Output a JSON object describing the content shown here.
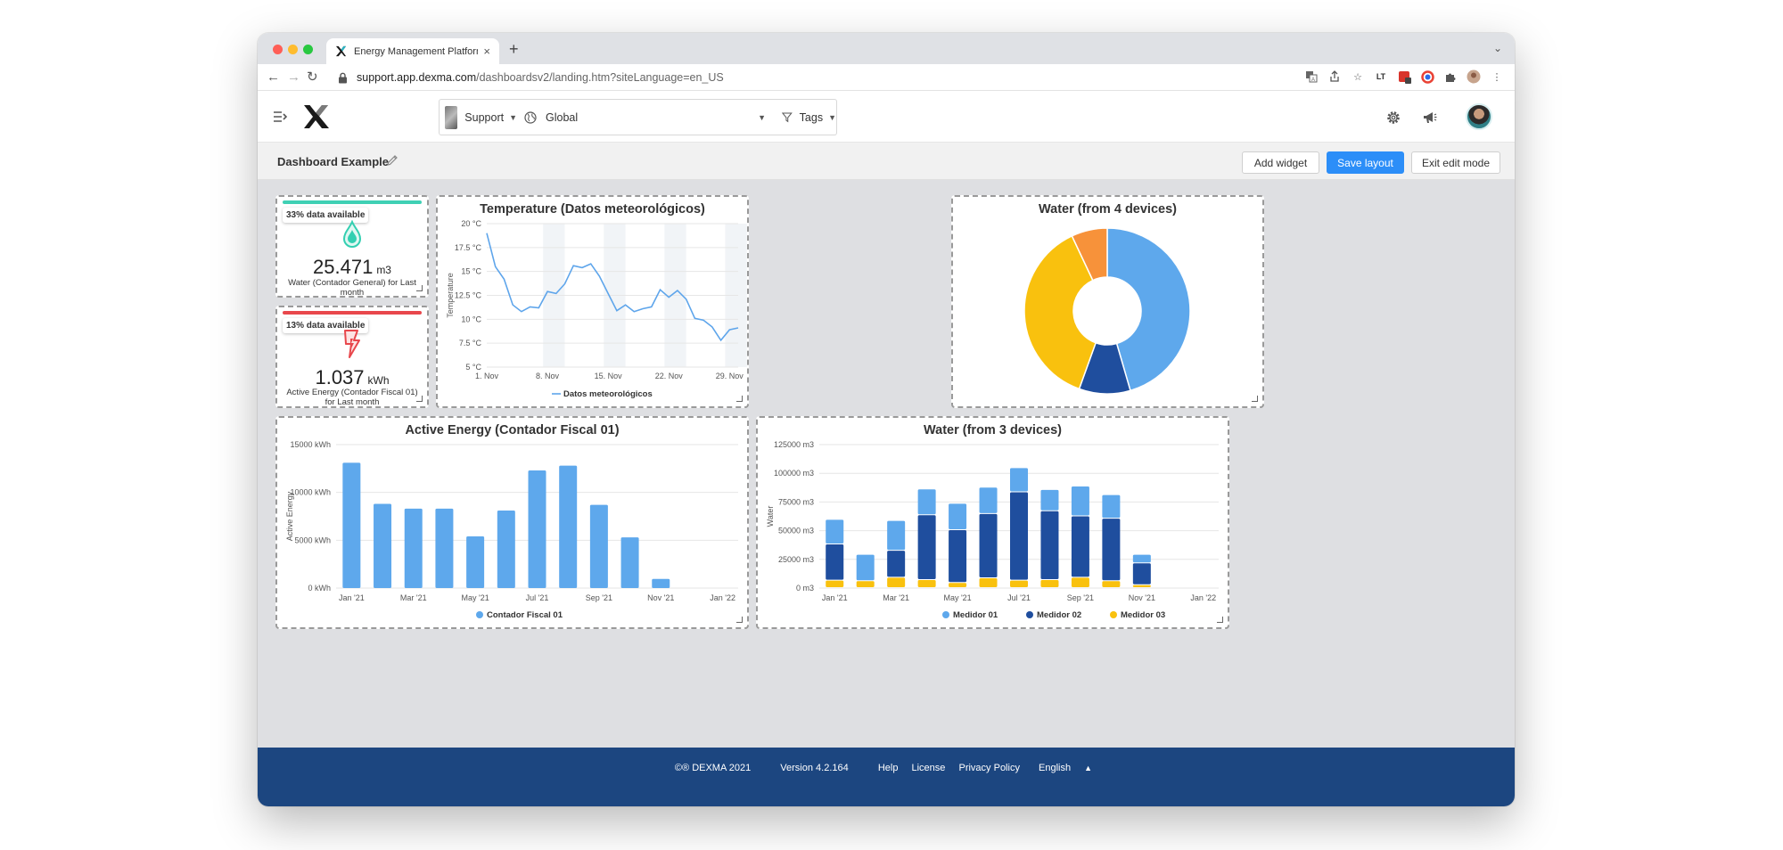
{
  "browser": {
    "tab_title": "Energy Management Platform",
    "url_host": "support.app.dexma.com",
    "url_path": "/dashboardsv2/landing.htm?siteLanguage=en_US"
  },
  "header": {
    "support_label": "Support",
    "global_label": "Global",
    "tags_label": "Tags"
  },
  "subheader": {
    "title": "Dashboard Example",
    "add_widget": "Add widget",
    "save_layout": "Save layout",
    "exit_edit": "Exit edit mode"
  },
  "kpis": [
    {
      "badge": "33% data available",
      "value": "25.471",
      "unit": "m3",
      "caption_main": "Water (Contador General)",
      "caption_suffix": "for Last month",
      "bar_color": "#3fd0b4",
      "icon": "water-drop-icon"
    },
    {
      "badge": "13% data available",
      "value": "1.037",
      "unit": "kWh",
      "caption_main": "Active Energy (Contador Fiscal 01)",
      "caption_suffix": "for Last month",
      "bar_color": "#e8474c",
      "icon": "lightning-icon"
    }
  ],
  "chart_data": [
    {
      "type": "line",
      "title": "Temperature (Datos meteorológicos)",
      "ylabel": "Temperature",
      "ylim": [
        5,
        20
      ],
      "y_ticks": [
        "20 °C",
        "17.5 °C",
        "15 °C",
        "12.5 °C",
        "10 °C",
        "7.5 °C",
        "5 °C"
      ],
      "x_ticks": [
        "1. Nov",
        "8. Nov",
        "15. Nov",
        "22. Nov",
        "29. Nov"
      ],
      "x_range": [
        1,
        30
      ],
      "series": [
        {
          "name": "Datos meteorológicos",
          "color": "#5ea5eb",
          "x": [
            1,
            2,
            3,
            4,
            5,
            6,
            7,
            8,
            9,
            10,
            11,
            12,
            13,
            14,
            15,
            16,
            17,
            18,
            19,
            20,
            21,
            22,
            23,
            24,
            25,
            26,
            27,
            28,
            29,
            30
          ],
          "y": [
            19.0,
            15.5,
            14.2,
            11.5,
            10.8,
            11.3,
            11.2,
            12.9,
            12.7,
            13.7,
            15.6,
            15.4,
            15.8,
            14.5,
            12.7,
            10.9,
            11.5,
            10.8,
            11.1,
            11.3,
            13.1,
            12.3,
            13.0,
            12.1,
            10.1,
            9.9,
            9.2,
            7.8,
            8.9,
            9.1
          ]
        }
      ],
      "legend": "bottom"
    },
    {
      "type": "pie",
      "title": "Water (from 4 devices)",
      "donut": true,
      "slices": [
        {
          "value": 45.5,
          "color": "#5ea8ec"
        },
        {
          "value": 10.0,
          "color": "#1f4e9e"
        },
        {
          "value": 37.5,
          "color": "#f9c10e"
        },
        {
          "value": 7.0,
          "color": "#f7923a"
        }
      ]
    },
    {
      "type": "bar",
      "title": "Active Energy (Contador Fiscal 01)",
      "ylabel": "Active Energy",
      "ylim": [
        0,
        15000
      ],
      "y_ticks": [
        "15000 kWh",
        "10000 kWh",
        "5000 kWh",
        "0 kWh"
      ],
      "x_ticks": [
        "Jan '21",
        "Mar '21",
        "May '21",
        "Jul '21",
        "Sep '21",
        "Nov '21",
        "Jan '22"
      ],
      "categories": [
        "Jan '21",
        "Feb '21",
        "Mar '21",
        "Apr '21",
        "May '21",
        "Jun '21",
        "Jul '21",
        "Aug '21",
        "Sep '21",
        "Oct '21",
        "Nov '21",
        "Dec '21"
      ],
      "series": [
        {
          "name": "Contador Fiscal 01",
          "color": "#5ea8ec",
          "values": [
            13100,
            8800,
            8300,
            8300,
            5400,
            8100,
            12300,
            12800,
            8700,
            5300,
            950,
            0
          ]
        }
      ],
      "legend": "bottom"
    },
    {
      "type": "bar",
      "stacked": true,
      "title": "Water (from 3 devices)",
      "ylabel": "Water",
      "ylim": [
        0,
        125000
      ],
      "y_ticks": [
        "125000 m3",
        "100000 m3",
        "75000 m3",
        "50000 m3",
        "25000 m3",
        "0 m3"
      ],
      "x_ticks": [
        "Jan '21",
        "Mar '21",
        "May '21",
        "Jul '21",
        "Sep '21",
        "Nov '21",
        "Jan '22"
      ],
      "categories": [
        "Jan '21",
        "Feb '21",
        "Mar '21",
        "Apr '21",
        "May '21",
        "Jun '21",
        "Jul '21",
        "Aug '21",
        "Sep '21",
        "Oct '21",
        "Nov '21",
        "Dec '21"
      ],
      "series": [
        {
          "name": "Medidor 03",
          "color": "#f9c10e",
          "values": [
            6500,
            6000,
            9000,
            7000,
            4500,
            8500,
            6500,
            7000,
            9000,
            6000,
            2500,
            0
          ]
        },
        {
          "name": "Medidor 02",
          "color": "#1f4e9e",
          "values": [
            31500,
            0,
            23500,
            56500,
            46000,
            56000,
            77000,
            60000,
            53500,
            54500,
            19000,
            0
          ]
        },
        {
          "name": "Medidor 01",
          "color": "#5ea8ec",
          "values": [
            21500,
            23000,
            26000,
            22500,
            23000,
            23000,
            21000,
            18500,
            26000,
            20500,
            7500,
            0
          ]
        }
      ],
      "legend_order": [
        "Medidor 01",
        "Medidor 02",
        "Medidor 03"
      ],
      "legend": "bottom"
    }
  ],
  "footer": {
    "copyright": "©® DEXMA 2021",
    "version": "Version 4.2.164",
    "help": "Help",
    "license": "License",
    "privacy": "Privacy Policy",
    "language": "English"
  }
}
